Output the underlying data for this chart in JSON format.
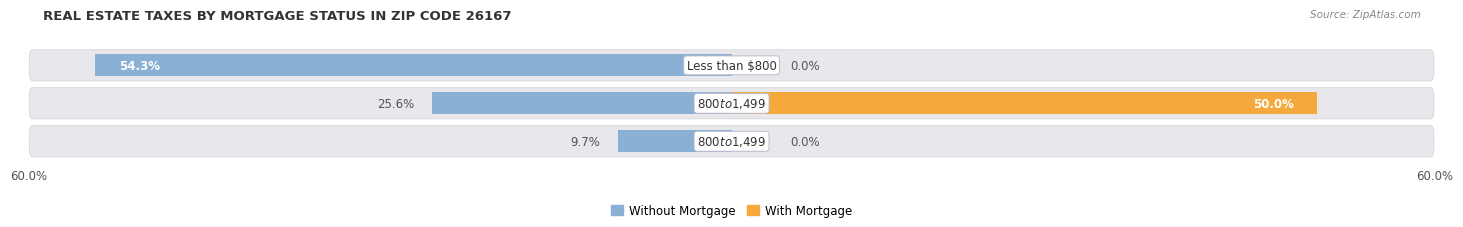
{
  "title": "REAL ESTATE TAXES BY MORTGAGE STATUS IN ZIP CODE 26167",
  "source": "Source: ZipAtlas.com",
  "rows": [
    {
      "label": "Less than $800",
      "without": 54.3,
      "with": 0.0
    },
    {
      "label": "$800 to $1,499",
      "without": 25.6,
      "with": 50.0
    },
    {
      "label": "$800 to $1,499",
      "without": 9.7,
      "with": 0.0
    }
  ],
  "xlim": 60.0,
  "color_without": "#8ab0d4",
  "color_with": "#f5a93c",
  "color_with_light": "#f9d4a0",
  "bar_height": 0.58,
  "bg_row_color": "#e8e8ec",
  "label_fontsize": 8.5,
  "title_fontsize": 9.5,
  "tick_fontsize": 8.5,
  "legend_fontsize": 8.5,
  "value_label_inside_color": "white",
  "value_label_outside_color": "#555555"
}
